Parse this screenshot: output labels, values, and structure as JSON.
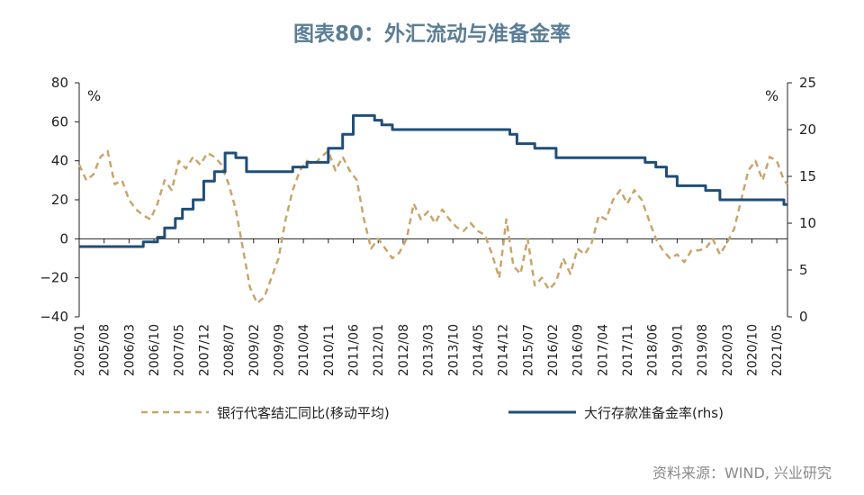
{
  "chart_data": {
    "type": "line",
    "title": "图表80：外汇流动与准备金率",
    "source": "资料来源：WIND, 兴业研究",
    "y_left": {
      "unit": "%",
      "ylim": [
        -40,
        80
      ],
      "ticks": [
        80,
        60,
        40,
        20,
        0,
        -20,
        -40
      ]
    },
    "y_right": {
      "unit": "%",
      "ylim": [
        0,
        25
      ],
      "ticks": [
        25,
        20,
        15,
        10,
        5,
        0
      ]
    },
    "x_ticks": [
      "2005/01",
      "2005/08",
      "2006/03",
      "2006/10",
      "2007/05",
      "2007/12",
      "2008/07",
      "2009/02",
      "2009/09",
      "2010/04",
      "2010/11",
      "2011/06",
      "2012/01",
      "2012/08",
      "2013/03",
      "2013/10",
      "2014/05",
      "2014/12",
      "2015/07",
      "2016/02",
      "2016/09",
      "2017/04",
      "2017/11",
      "2018/06",
      "2019/01",
      "2019/08",
      "2020/03",
      "2020/10",
      "2021/05"
    ],
    "grid": false,
    "legend_position": "bottom",
    "series": [
      {
        "name": "银行代客结汇同比(移动平均)",
        "axis": "left",
        "color": "#c9a56b",
        "style": "dashed",
        "x": [
          "2005/01",
          "2005/03",
          "2005/05",
          "2005/07",
          "2005/09",
          "2005/11",
          "2006/01",
          "2006/03",
          "2006/05",
          "2006/07",
          "2006/09",
          "2006/11",
          "2007/01",
          "2007/03",
          "2007/05",
          "2007/07",
          "2007/09",
          "2007/11",
          "2008/01",
          "2008/03",
          "2008/05",
          "2008/07",
          "2008/09",
          "2008/11",
          "2009/01",
          "2009/03",
          "2009/05",
          "2009/07",
          "2009/09",
          "2009/11",
          "2010/01",
          "2010/03",
          "2010/05",
          "2010/07",
          "2010/09",
          "2010/11",
          "2011/01",
          "2011/03",
          "2011/05",
          "2011/07",
          "2011/09",
          "2011/11",
          "2012/01",
          "2012/03",
          "2012/05",
          "2012/07",
          "2012/09",
          "2012/11",
          "2013/01",
          "2013/03",
          "2013/05",
          "2013/07",
          "2013/09",
          "2013/11",
          "2014/01",
          "2014/03",
          "2014/05",
          "2014/07",
          "2014/09",
          "2014/11",
          "2015/01",
          "2015/03",
          "2015/05",
          "2015/07",
          "2015/09",
          "2015/11",
          "2016/01",
          "2016/03",
          "2016/05",
          "2016/07",
          "2016/09",
          "2016/11",
          "2017/01",
          "2017/03",
          "2017/05",
          "2017/07",
          "2017/09",
          "2017/11",
          "2018/01",
          "2018/03",
          "2018/05",
          "2018/07",
          "2018/09",
          "2018/11",
          "2019/01",
          "2019/03",
          "2019/05",
          "2019/07",
          "2019/09",
          "2019/11",
          "2020/01",
          "2020/03",
          "2020/05",
          "2020/07",
          "2020/09",
          "2020/11",
          "2021/01",
          "2021/03",
          "2021/05",
          "2021/07",
          "2021/08"
        ],
        "values": [
          38,
          30,
          33,
          42,
          45,
          28,
          30,
          20,
          15,
          12,
          10,
          18,
          30,
          25,
          40,
          36,
          42,
          38,
          44,
          42,
          38,
          28,
          15,
          -5,
          -25,
          -33,
          -30,
          -20,
          -10,
          10,
          25,
          35,
          40,
          38,
          42,
          45,
          35,
          42,
          35,
          30,
          10,
          -5,
          0,
          -5,
          -10,
          -7,
          0,
          18,
          10,
          14,
          8,
          15,
          10,
          6,
          4,
          8,
          4,
          2,
          -8,
          -20,
          10,
          -14,
          -18,
          0,
          -24,
          -20,
          -26,
          -22,
          -10,
          -18,
          -5,
          -8,
          -2,
          12,
          10,
          20,
          25,
          18,
          25,
          20,
          10,
          0,
          -6,
          -10,
          -8,
          -12,
          -6,
          -6,
          -5,
          0,
          -8,
          -2,
          5,
          20,
          35,
          40,
          30,
          42,
          40,
          30,
          28
        ]
      },
      {
        "name": "大行存款准备金率(rhs)",
        "axis": "right",
        "color": "#1f4e79",
        "style": "solid",
        "x": [
          "2005/01",
          "2006/06",
          "2006/07",
          "2006/11",
          "2007/01",
          "2007/04",
          "2007/06",
          "2007/09",
          "2007/12",
          "2008/03",
          "2008/06",
          "2008/09",
          "2008/12",
          "2009/06",
          "2010/01",
          "2010/05",
          "2010/11",
          "2011/03",
          "2011/06",
          "2011/12",
          "2012/02",
          "2012/05",
          "2015/02",
          "2015/04",
          "2015/09",
          "2016/03",
          "2018/04",
          "2018/07",
          "2018/10",
          "2019/01",
          "2019/09",
          "2020/01",
          "2021/07",
          "2021/08"
        ],
        "values": [
          7.5,
          7.5,
          8,
          8.5,
          9.5,
          10.5,
          11.5,
          12.5,
          14.5,
          15.5,
          17.5,
          17,
          15.5,
          15.5,
          16,
          16.5,
          18,
          19.5,
          21.5,
          21,
          20.5,
          20,
          19.5,
          18.5,
          18,
          17,
          16.5,
          16,
          15,
          14,
          13.5,
          12.5,
          12,
          12
        ]
      }
    ]
  }
}
